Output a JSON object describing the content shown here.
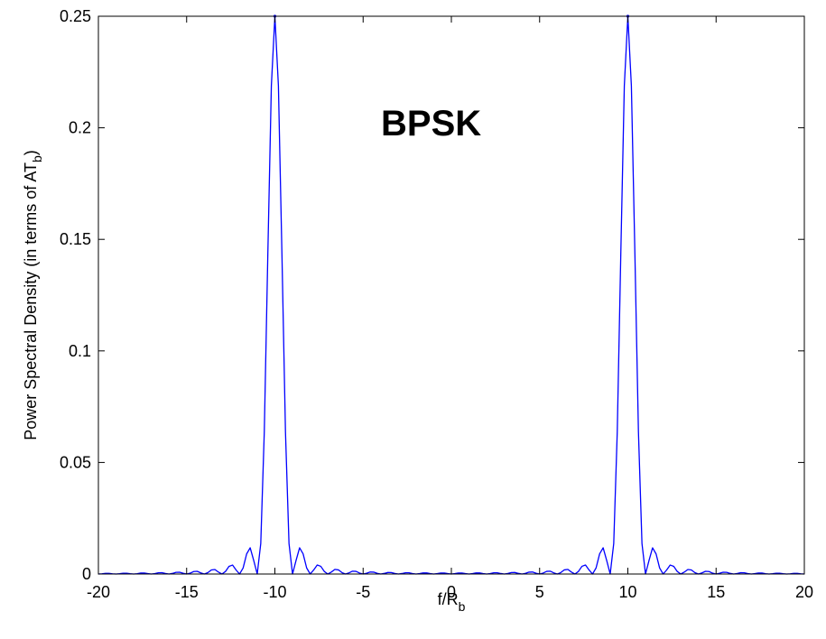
{
  "chart_data": {
    "type": "line",
    "title": "",
    "annotation": "BPSK",
    "xlabel": {
      "main": "f/R",
      "sub": "b"
    },
    "ylabel": {
      "main": "Power Spectral Density (in terms of AT",
      "sub": "b",
      "close": ")"
    },
    "xlim": [
      -20,
      20
    ],
    "ylim": [
      0,
      0.25
    ],
    "xticks": [
      -20,
      -15,
      -10,
      -5,
      0,
      5,
      10,
      15,
      20
    ],
    "xtick_labels": [
      "-20",
      "-15",
      "-10",
      "-5",
      "0",
      "5",
      "10",
      "15",
      "20"
    ],
    "yticks": [
      0,
      0.05,
      0.1,
      0.15,
      0.2,
      0.25
    ],
    "ytick_labels": [
      "0",
      "0.05",
      "0.1",
      "0.15",
      "0.2",
      "0.25"
    ],
    "grid": false,
    "series": [
      {
        "function": "0.25 * (sinc^2(x + 10) + sinc^2(x - 10))",
        "x_range": [
          -20,
          20
        ],
        "peaks": [
          {
            "x": -10,
            "y": 0.25
          },
          {
            "x": 10,
            "y": 0.25
          }
        ],
        "color": "#0000ff"
      }
    ]
  }
}
